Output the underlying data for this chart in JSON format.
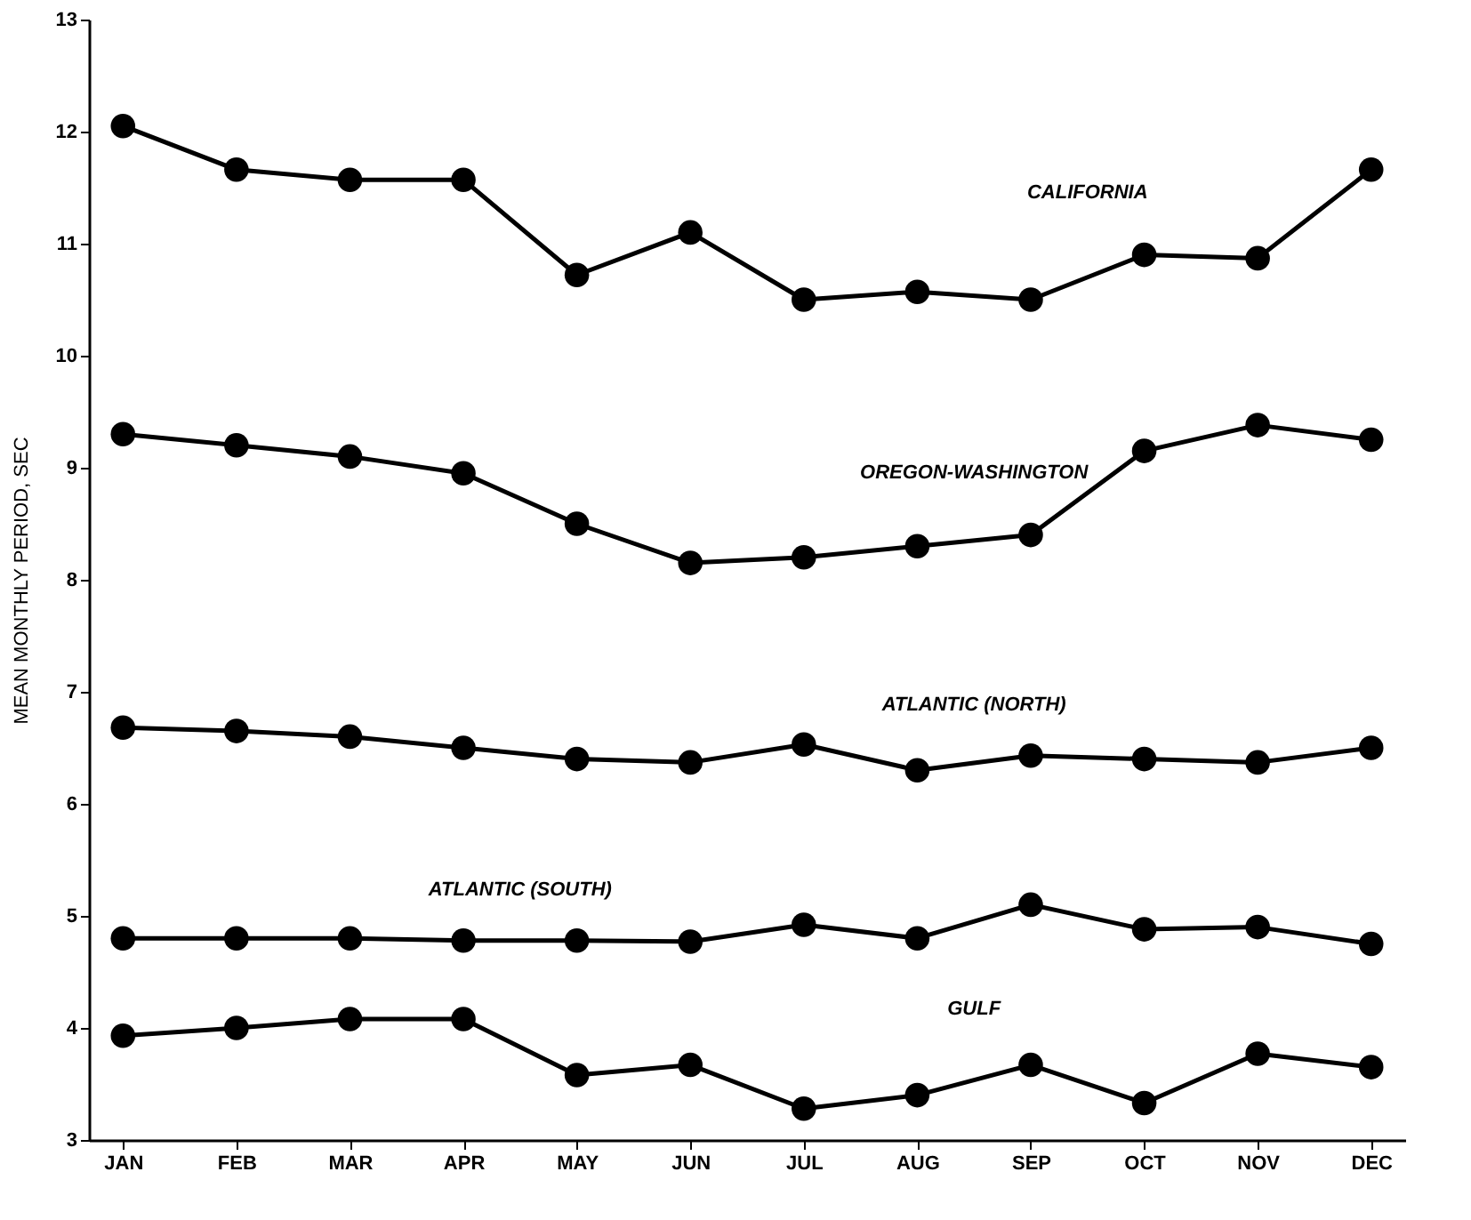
{
  "chart_data": {
    "type": "line",
    "ylabel": "MEAN MONTHLY PERIOD, SEC",
    "categories": [
      "JAN",
      "FEB",
      "MAR",
      "APR",
      "MAY",
      "JUN",
      "JUL",
      "AUG",
      "SEP",
      "OCT",
      "NOV",
      "DEC"
    ],
    "series": [
      {
        "name": "CALIFORNIA",
        "color": "#000000",
        "values": [
          12.05,
          11.66,
          11.57,
          11.57,
          10.72,
          11.1,
          10.5,
          10.57,
          10.5,
          10.9,
          10.87,
          11.66
        ]
      },
      {
        "name": "OREGON-WASHINGTON",
        "color": "#000000",
        "values": [
          9.3,
          9.2,
          9.1,
          8.95,
          8.5,
          8.15,
          8.2,
          8.3,
          8.4,
          9.15,
          9.38,
          9.25
        ]
      },
      {
        "name": "ATLANTIC (NORTH)",
        "color": "#000000",
        "values": [
          6.68,
          6.65,
          6.6,
          6.5,
          6.4,
          6.37,
          6.53,
          6.3,
          6.43,
          6.4,
          6.37,
          6.5
        ]
      },
      {
        "name": "ATLANTIC (SOUTH)",
        "color": "#000000",
        "values": [
          4.8,
          4.8,
          4.8,
          4.78,
          4.78,
          4.77,
          4.92,
          4.8,
          5.1,
          4.88,
          4.9,
          4.75
        ]
      },
      {
        "name": "GULF",
        "color": "#000000",
        "values": [
          3.93,
          4.0,
          4.08,
          4.08,
          3.58,
          3.67,
          3.28,
          3.4,
          3.67,
          3.33,
          3.77,
          3.65
        ]
      }
    ],
    "ylim": [
      3,
      13
    ],
    "yticks": [
      3,
      4,
      5,
      6,
      7,
      8,
      9,
      10,
      11,
      12,
      13
    ],
    "marker": "circle",
    "line_style": "solid",
    "legend": false,
    "grid": false
  }
}
